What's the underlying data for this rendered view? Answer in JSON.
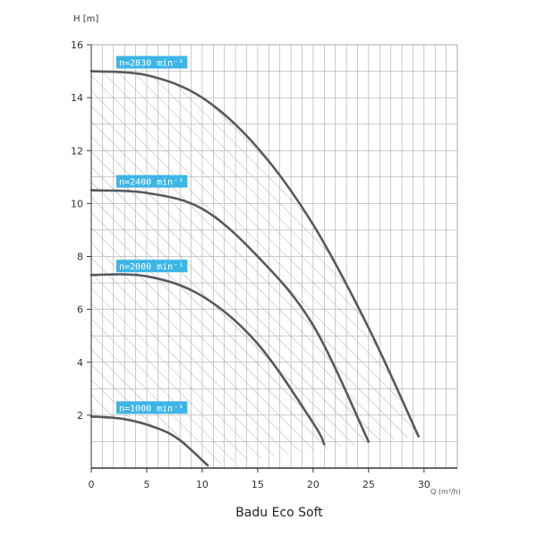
{
  "chart_data": {
    "type": "line",
    "title": "",
    "caption": "Badu Eco Soft",
    "xlabel": "Q (m³/h)",
    "ylabel": "H [m]",
    "xlim": [
      0,
      33
    ],
    "ylim": [
      0,
      16
    ],
    "x_ticks": [
      "0",
      "5",
      "10",
      "15",
      "20",
      "25",
      "30"
    ],
    "y_ticks": [
      "2",
      "4",
      "6",
      "8",
      "10",
      "12",
      "14",
      "16"
    ],
    "grid": true,
    "hatched_operating_area": true,
    "colors": {
      "curve": "#555a60",
      "label_bg": "#3db5e6",
      "grid": "#9a9a9a",
      "hatch": "#a8a8a8"
    },
    "series": [
      {
        "name": "n=2830 min⁻¹",
        "x": [
          0,
          5,
          10,
          15,
          20,
          25,
          29.5
        ],
        "y": [
          15.0,
          14.85,
          14.0,
          12.1,
          9.2,
          5.3,
          1.2
        ]
      },
      {
        "name": "n=2400 min⁻¹",
        "x": [
          0,
          5,
          10,
          15,
          20,
          25
        ],
        "y": [
          10.5,
          10.4,
          9.8,
          8.0,
          5.4,
          1.0
        ]
      },
      {
        "name": "n=2000 min⁻¹",
        "x": [
          0,
          5,
          10,
          15,
          20,
          21
        ],
        "y": [
          7.3,
          7.25,
          6.5,
          4.7,
          1.7,
          0.9
        ]
      },
      {
        "name": "n=1000 min⁻¹",
        "x": [
          0,
          3,
          6,
          8,
          10.5
        ],
        "y": [
          1.95,
          1.85,
          1.5,
          1.05,
          0.1
        ]
      }
    ]
  }
}
